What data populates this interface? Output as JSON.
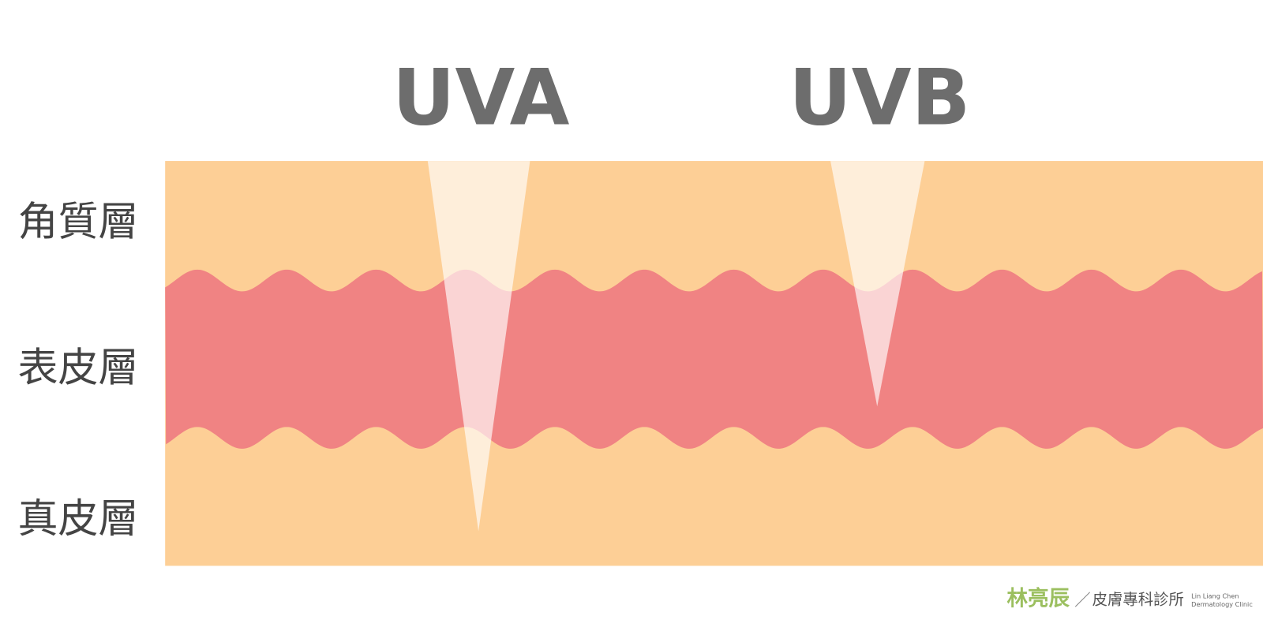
{
  "rays": [
    {
      "label": "UVA"
    },
    {
      "label": "UVB"
    }
  ],
  "layers": [
    {
      "label": "角質層"
    },
    {
      "label": "表皮層"
    },
    {
      "label": "真皮層"
    }
  ],
  "footer": {
    "name": "林亮辰",
    "separator": "／",
    "clinic": "皮膚專科診所",
    "english_line1": "Lin Liang Chen",
    "english_line2": "Dermatology Clinic"
  }
}
